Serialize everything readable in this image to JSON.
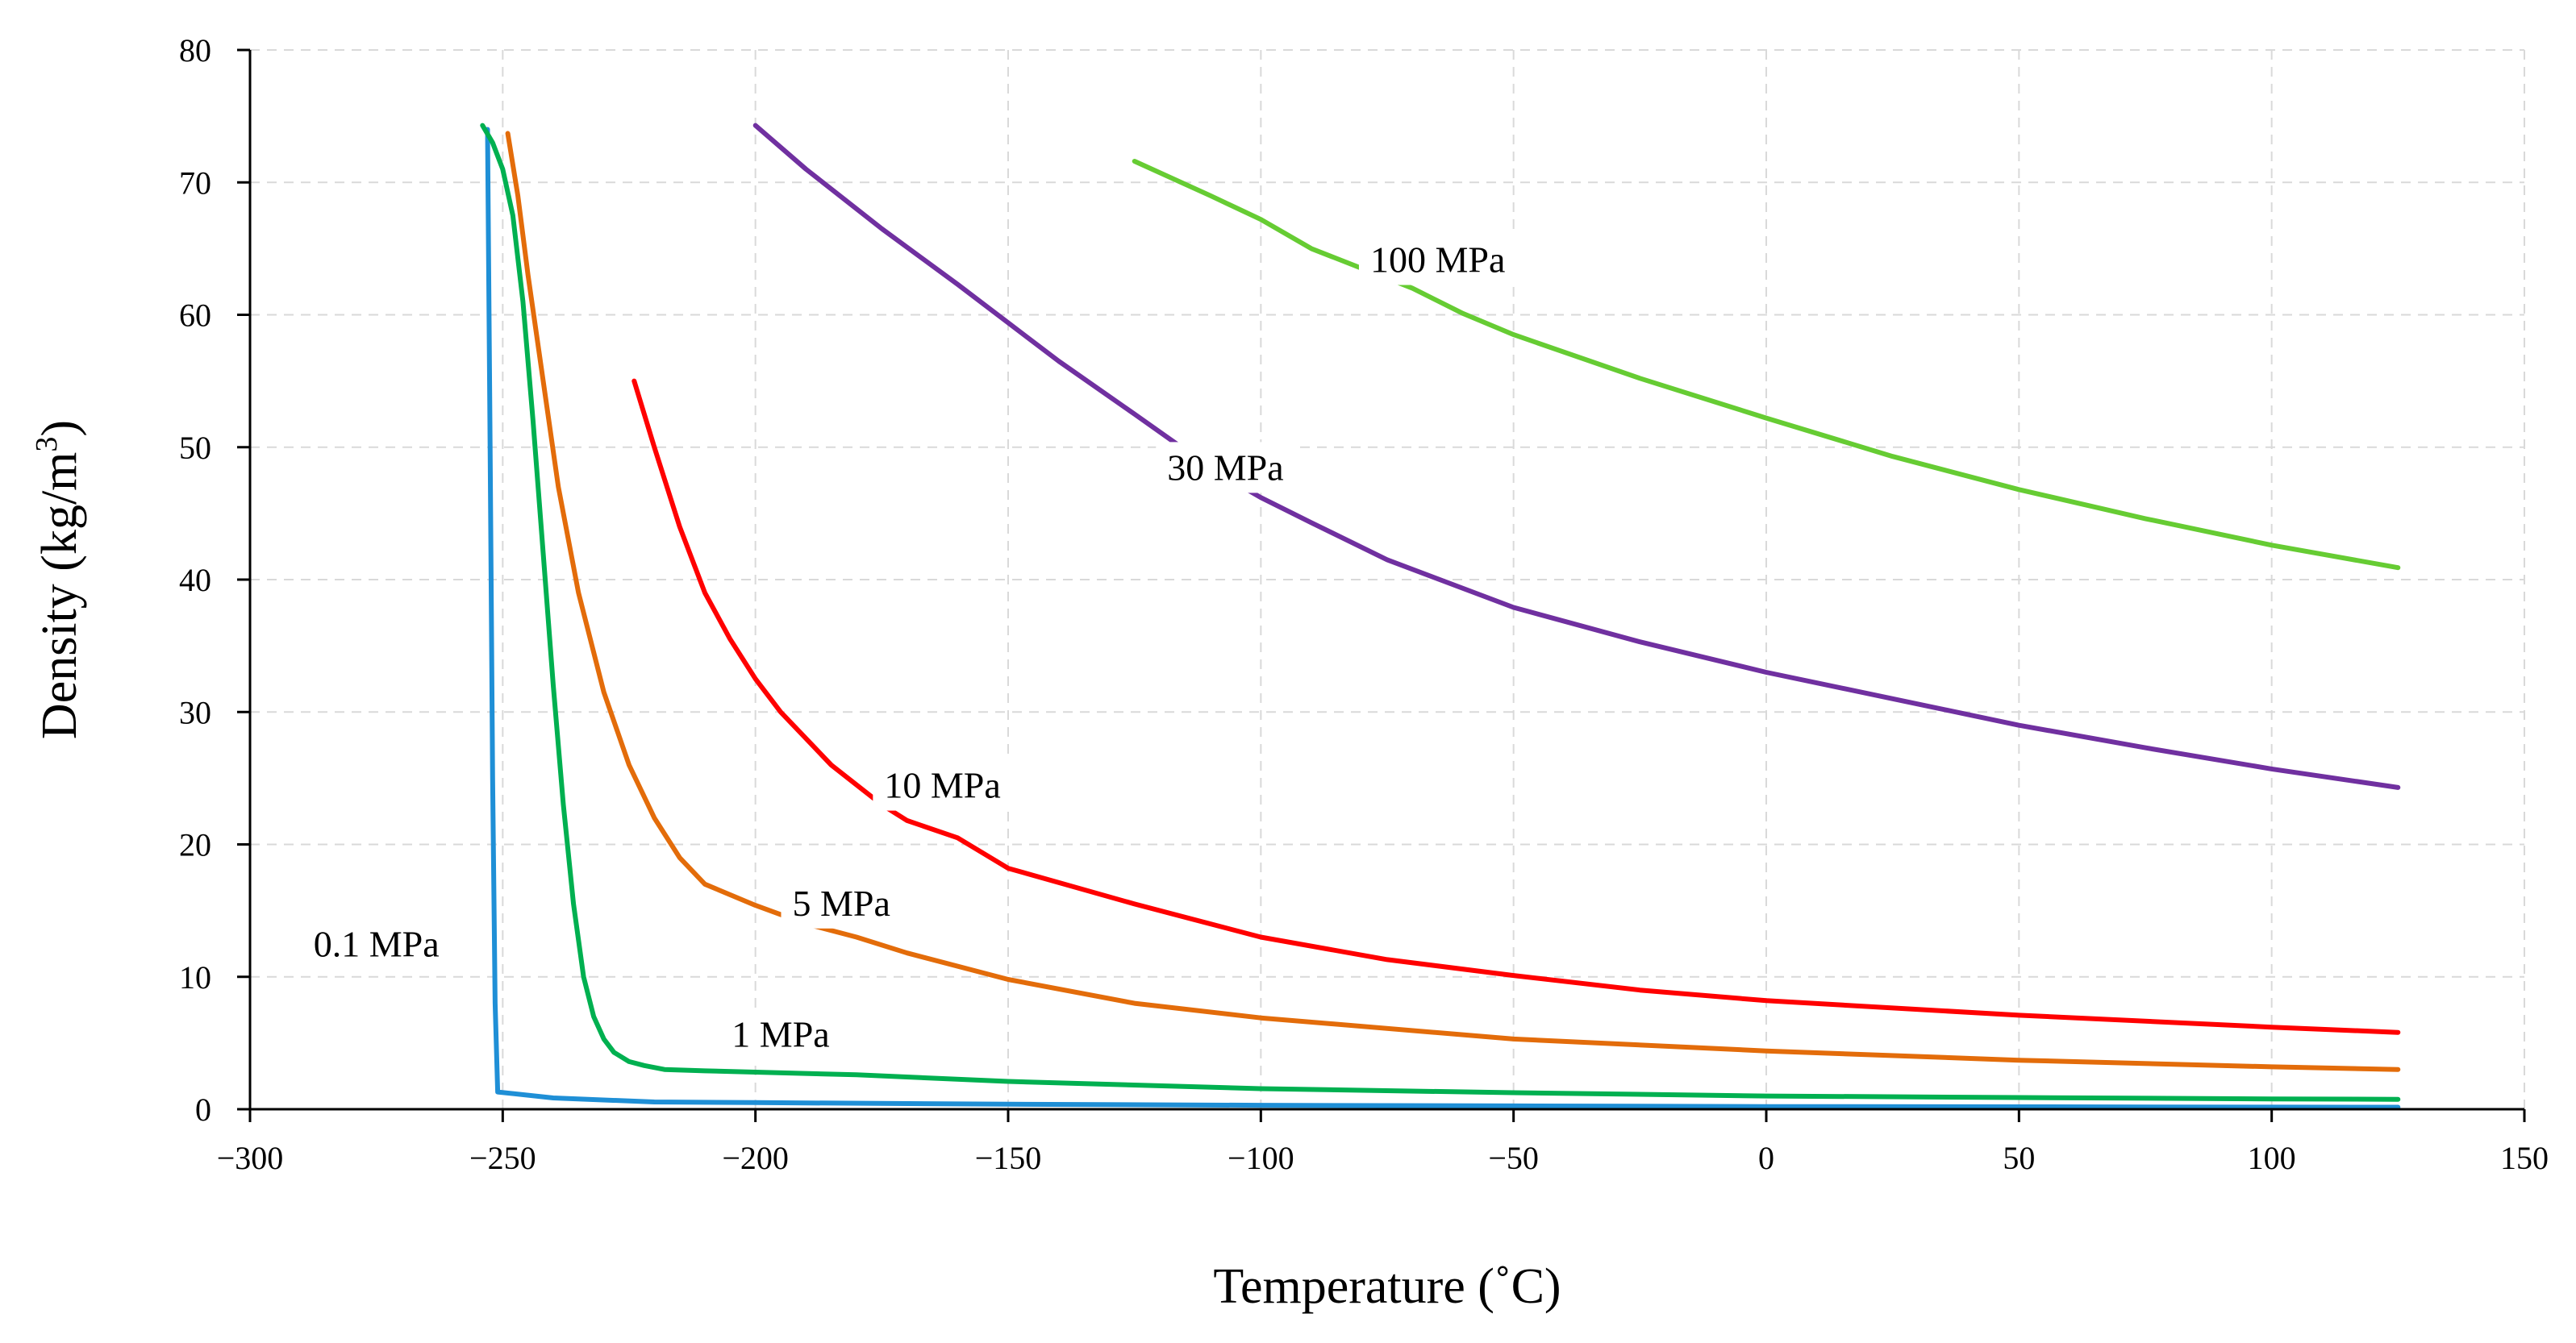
{
  "chart_data": {
    "type": "line",
    "title": "",
    "xlabel": "Temperature (˚C)",
    "ylabel_main": "Density (kg/m",
    "ylabel_sup": "3",
    "ylabel_close": ")",
    "xlim": [
      -300,
      150
    ],
    "ylim": [
      0,
      80
    ],
    "xticks": [
      -300,
      -250,
      -200,
      -150,
      -100,
      -50,
      0,
      50,
      100,
      150
    ],
    "yticks": [
      0,
      10,
      20,
      30,
      40,
      50,
      60,
      70,
      80
    ],
    "xtick_labels": [
      "−300",
      "−250",
      "−200",
      "−150",
      "−100",
      "−50",
      "0",
      "50",
      "100",
      "150"
    ],
    "ytick_labels": [
      "0",
      "10",
      "20",
      "30",
      "40",
      "50",
      "60",
      "70",
      "80"
    ],
    "grid": true,
    "series": [
      {
        "name": "0.1 MPa",
        "color": "#1f8fd6",
        "label_anchor": [
          -275,
          12.5
        ],
        "points": [
          [
            -253,
            74
          ],
          [
            -252.5,
            50
          ],
          [
            -252,
            25
          ],
          [
            -251.5,
            8
          ],
          [
            -251,
            1.3
          ],
          [
            -240,
            0.85
          ],
          [
            -220,
            0.55
          ],
          [
            -200,
            0.5
          ],
          [
            -150,
            0.38
          ],
          [
            -100,
            0.3
          ],
          [
            -50,
            0.25
          ],
          [
            0,
            0.2
          ],
          [
            50,
            0.18
          ],
          [
            100,
            0.16
          ],
          [
            125,
            0.15
          ]
        ]
      },
      {
        "name": "1 MPa",
        "color": "#00b050",
        "label_anchor": [
          -195,
          5.7
        ],
        "points": [
          [
            -254,
            74.3
          ],
          [
            -252,
            73
          ],
          [
            -250,
            71
          ],
          [
            -248,
            67.5
          ],
          [
            -246,
            61
          ],
          [
            -244,
            52
          ],
          [
            -242,
            42
          ],
          [
            -240,
            32
          ],
          [
            -238,
            23
          ],
          [
            -236,
            15.5
          ],
          [
            -234,
            10
          ],
          [
            -232,
            7
          ],
          [
            -230,
            5.3
          ],
          [
            -228,
            4.3
          ],
          [
            -225,
            3.6
          ],
          [
            -222,
            3.3
          ],
          [
            -218,
            3.0
          ],
          [
            -210,
            2.9
          ],
          [
            -200,
            2.8
          ],
          [
            -180,
            2.6
          ],
          [
            -150,
            2.1
          ],
          [
            -100,
            1.55
          ],
          [
            -50,
            1.25
          ],
          [
            0,
            1.0
          ],
          [
            50,
            0.88
          ],
          [
            100,
            0.78
          ],
          [
            125,
            0.75
          ]
        ]
      },
      {
        "name": "5 MPa",
        "color": "#e36c0a",
        "label_anchor": [
          -183,
          15.6
        ],
        "points": [
          [
            -249,
            73.7
          ],
          [
            -247,
            69
          ],
          [
            -245,
            63
          ],
          [
            -242,
            55
          ],
          [
            -239,
            47
          ],
          [
            -235,
            39
          ],
          [
            -230,
            31.5
          ],
          [
            -225,
            26
          ],
          [
            -220,
            22
          ],
          [
            -215,
            19
          ],
          [
            -210,
            17
          ],
          [
            -200,
            15.4
          ],
          [
            -190,
            14
          ],
          [
            -180,
            13
          ],
          [
            -170,
            11.8
          ],
          [
            -150,
            9.8
          ],
          [
            -125,
            8
          ],
          [
            -100,
            6.9
          ],
          [
            -50,
            5.3
          ],
          [
            0,
            4.4
          ],
          [
            50,
            3.7
          ],
          [
            100,
            3.2
          ],
          [
            125,
            3.0
          ]
        ]
      },
      {
        "name": "10 MPa",
        "color": "#ff0000",
        "label_anchor": [
          -163,
          24.5
        ],
        "points": [
          [
            -224,
            55
          ],
          [
            -220,
            50
          ],
          [
            -215,
            44
          ],
          [
            -210,
            39
          ],
          [
            -205,
            35.5
          ],
          [
            -200,
            32.5
          ],
          [
            -195,
            30
          ],
          [
            -190,
            28
          ],
          [
            -185,
            26
          ],
          [
            -180,
            24.5
          ],
          [
            -175,
            23
          ],
          [
            -170,
            21.8
          ],
          [
            -160,
            20.5
          ],
          [
            -150,
            18.2
          ],
          [
            -125,
            15.5
          ],
          [
            -100,
            13
          ],
          [
            -75,
            11.3
          ],
          [
            -50,
            10.1
          ],
          [
            -25,
            9
          ],
          [
            0,
            8.2
          ],
          [
            50,
            7.1
          ],
          [
            100,
            6.2
          ],
          [
            125,
            5.8
          ]
        ]
      },
      {
        "name": "30 MPa",
        "color": "#7030a0",
        "label_anchor": [
          -107,
          48.5
        ],
        "points": [
          [
            -200,
            74.3
          ],
          [
            -190,
            71
          ],
          [
            -175,
            66.5
          ],
          [
            -160,
            62.3
          ],
          [
            -150,
            59.4
          ],
          [
            -140,
            56.5
          ],
          [
            -125,
            52.5
          ],
          [
            -115,
            49.8
          ],
          [
            -105,
            47.3
          ],
          [
            -100,
            46.2
          ],
          [
            -90,
            44.3
          ],
          [
            -75,
            41.5
          ],
          [
            -50,
            37.9
          ],
          [
            -25,
            35.3
          ],
          [
            0,
            33
          ],
          [
            25,
            31
          ],
          [
            50,
            29
          ],
          [
            75,
            27.3
          ],
          [
            100,
            25.7
          ],
          [
            125,
            24.3
          ]
        ]
      },
      {
        "name": "100 MPa",
        "color": "#66cc33",
        "label_anchor": [
          -65,
          64.2
        ],
        "points": [
          [
            -125,
            71.6
          ],
          [
            -110,
            69
          ],
          [
            -100,
            67.2
          ],
          [
            -90,
            65
          ],
          [
            -80,
            63.5
          ],
          [
            -70,
            62
          ],
          [
            -60,
            60.1
          ],
          [
            -50,
            58.5
          ],
          [
            -25,
            55.2
          ],
          [
            0,
            52.2
          ],
          [
            25,
            49.3
          ],
          [
            50,
            46.8
          ],
          [
            75,
            44.6
          ],
          [
            100,
            42.6
          ],
          [
            125,
            40.9
          ]
        ]
      }
    ]
  }
}
